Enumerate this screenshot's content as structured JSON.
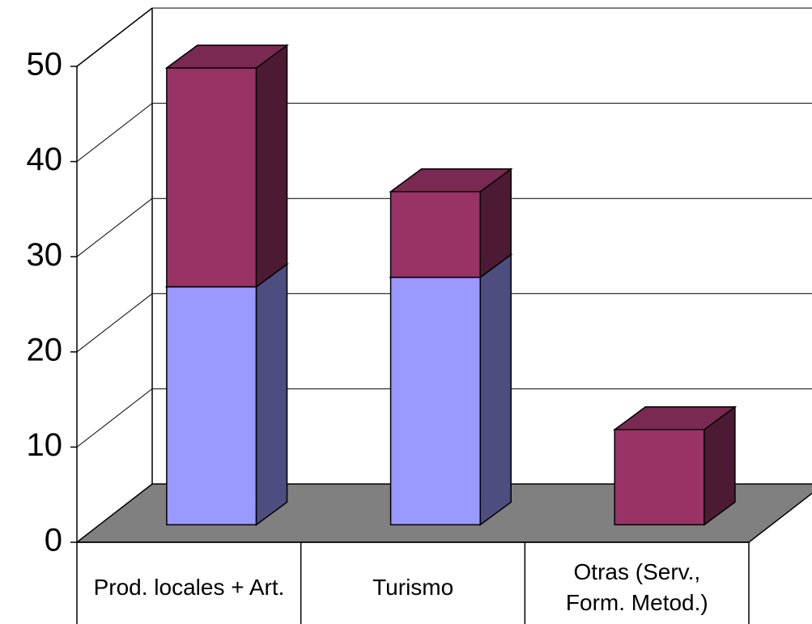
{
  "chart_data": {
    "type": "bar3d_stacked",
    "categories": [
      "Prod. locales + Art.",
      "Turismo",
      "Otras (Serv., Form. Metod.)"
    ],
    "series": [
      {
        "color": "#9999ff",
        "values": [
          25,
          26,
          0
        ]
      },
      {
        "color": "#993366",
        "values": [
          23,
          9,
          10
        ]
      }
    ],
    "ylim": [
      0,
      50
    ],
    "yticks": [
      0,
      10,
      20,
      30,
      40,
      50
    ],
    "grid": true
  }
}
